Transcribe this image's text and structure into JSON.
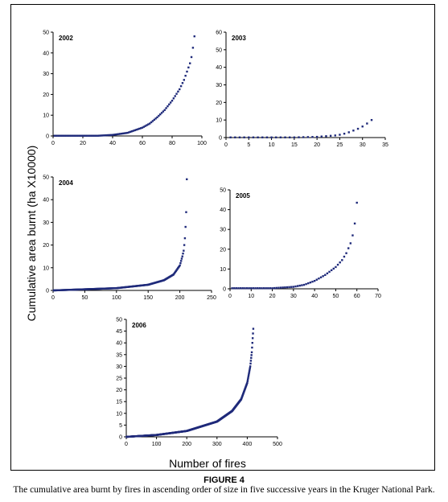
{
  "figure": {
    "label": "FIGURE 4",
    "caption": "The cumulative area burnt by fires in ascending order of size in five successive years in the Kruger National Park.",
    "xlabel": "Number of fires",
    "ylabel": "Cumulative area burnt (ha X10000)",
    "marker_color": "#1f2a7a"
  },
  "chart_data": [
    {
      "type": "scatter",
      "title": "2002",
      "xlim": [
        0,
        100
      ],
      "xticks": [
        0,
        20,
        40,
        60,
        80,
        100
      ],
      "ylim": [
        0,
        50
      ],
      "yticks": [
        0,
        10,
        20,
        30,
        40,
        50
      ],
      "n": 95,
      "x": [
        30,
        40,
        50,
        60,
        65,
        70,
        75,
        80,
        85,
        88,
        90,
        92,
        93,
        94,
        95
      ],
      "y": [
        0.1,
        0.5,
        1.5,
        4.0,
        6.0,
        9.0,
        12.5,
        17.0,
        22.5,
        27.0,
        31.0,
        35.0,
        38.0,
        42.5,
        48.0
      ]
    },
    {
      "type": "scatter",
      "title": "2003",
      "xlim": [
        0,
        35
      ],
      "xticks": [
        0,
        5,
        10,
        15,
        20,
        25,
        30,
        35
      ],
      "ylim": [
        0,
        60
      ],
      "yticks": [
        0,
        10,
        20,
        30,
        40,
        50,
        60
      ],
      "n": 32,
      "x": [
        15,
        20,
        22,
        24,
        25,
        26,
        27,
        28,
        29,
        30,
        31,
        32
      ],
      "y": [
        0.1,
        0.4,
        0.8,
        1.2,
        1.6,
        2.2,
        3.0,
        4.0,
        5.0,
        6.3,
        8.0,
        10.0
      ]
    },
    {
      "type": "scatter",
      "title": "2004",
      "xlim": [
        0,
        250
      ],
      "xticks": [
        0,
        50,
        100,
        150,
        200,
        250
      ],
      "ylim": [
        0,
        50
      ],
      "yticks": [
        0,
        10,
        20,
        30,
        40,
        50
      ],
      "n": 211,
      "x": [
        0,
        50,
        100,
        150,
        175,
        190,
        200,
        204,
        206,
        207,
        208,
        209,
        210,
        211
      ],
      "y": [
        0,
        0.5,
        1.0,
        2.5,
        4.5,
        7.0,
        11.0,
        15.0,
        17.5,
        20.0,
        23.0,
        28.0,
        34.5,
        49.0
      ]
    },
    {
      "type": "scatter",
      "title": "2005",
      "xlim": [
        0,
        70
      ],
      "xticks": [
        0,
        10,
        20,
        30,
        40,
        50,
        60,
        70
      ],
      "ylim": [
        0,
        50
      ],
      "yticks": [
        0,
        10,
        20,
        30,
        40,
        50
      ],
      "n": 60,
      "x": [
        20,
        30,
        35,
        40,
        45,
        50,
        53,
        55,
        57,
        58,
        59,
        60
      ],
      "y": [
        0.3,
        1.0,
        2.0,
        4.0,
        7.0,
        11.0,
        14.5,
        18.0,
        23.0,
        27.0,
        33.0,
        43.5
      ]
    },
    {
      "type": "scatter",
      "title": "2006",
      "xlim": [
        0,
        500
      ],
      "xticks": [
        0,
        100,
        200,
        300,
        400,
        500
      ],
      "ylim": [
        0,
        50
      ],
      "yticks": [
        0,
        5,
        10,
        15,
        20,
        25,
        30,
        35,
        40,
        45,
        50
      ],
      "n": 420,
      "x": [
        0,
        100,
        200,
        300,
        350,
        380,
        400,
        410,
        415,
        420
      ],
      "y": [
        0,
        0.8,
        2.5,
        6.5,
        11.0,
        16.0,
        23.0,
        30.0,
        36.0,
        46.0
      ]
    }
  ]
}
